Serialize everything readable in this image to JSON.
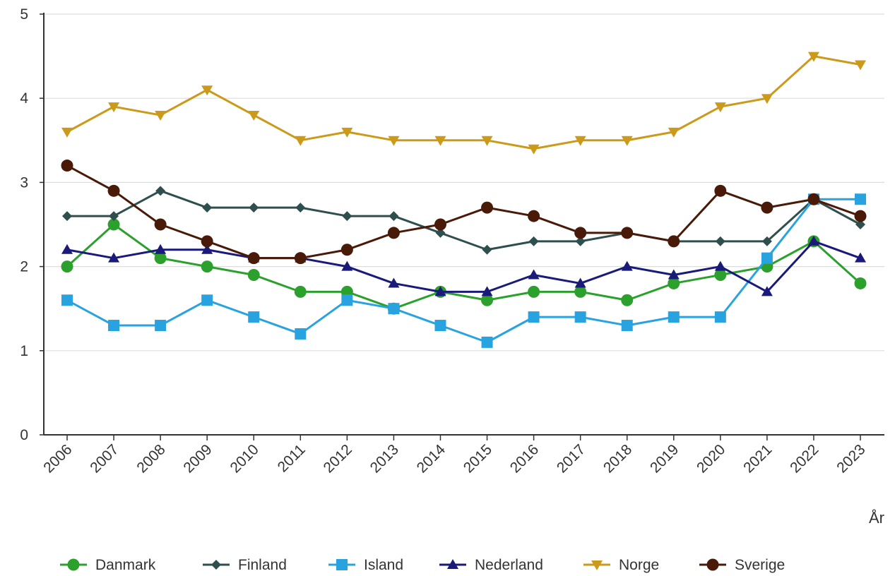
{
  "chart_data": {
    "type": "line",
    "xlabel": "År",
    "ylabel": "",
    "ylim": [
      0,
      5
    ],
    "yticks": [
      0,
      1,
      2,
      3,
      4,
      5
    ],
    "grid": true,
    "legend_position": "bottom",
    "x": [
      "2006",
      "2007",
      "2008",
      "2009",
      "2010",
      "2011",
      "2012",
      "2013",
      "2014",
      "2015",
      "2016",
      "2017",
      "2018",
      "2019",
      "2020",
      "2021",
      "2022",
      "2023"
    ],
    "series": [
      {
        "name": "Danmark",
        "color": "#2ca02c",
        "marker": "circle",
        "values": [
          2.0,
          2.5,
          2.1,
          2.0,
          1.9,
          1.7,
          1.7,
          1.5,
          1.7,
          1.6,
          1.7,
          1.7,
          1.6,
          1.8,
          1.9,
          2.0,
          2.3,
          1.8
        ]
      },
      {
        "name": "Finland",
        "color": "#2f4f4f",
        "marker": "diamond",
        "values": [
          2.6,
          2.6,
          2.9,
          2.7,
          2.7,
          2.7,
          2.6,
          2.6,
          2.4,
          2.2,
          2.3,
          2.3,
          2.4,
          2.3,
          2.3,
          2.3,
          2.8,
          2.5
        ]
      },
      {
        "name": "Island",
        "color": "#29a3e0",
        "marker": "square",
        "values": [
          1.6,
          1.3,
          1.3,
          1.6,
          1.4,
          1.2,
          1.6,
          1.5,
          1.3,
          1.1,
          1.4,
          1.4,
          1.3,
          1.4,
          1.4,
          2.1,
          2.8,
          2.8
        ]
      },
      {
        "name": "Nederland",
        "color": "#1a1a7a",
        "marker": "triangle-up",
        "values": [
          2.2,
          2.1,
          2.2,
          2.2,
          2.1,
          2.1,
          2.0,
          1.8,
          1.7,
          1.7,
          1.9,
          1.8,
          2.0,
          1.9,
          2.0,
          1.7,
          2.3,
          2.1
        ]
      },
      {
        "name": "Norge",
        "color": "#cc9a1a",
        "marker": "triangle-down",
        "values": [
          3.6,
          3.9,
          3.8,
          4.1,
          3.8,
          3.5,
          3.6,
          3.5,
          3.5,
          3.5,
          3.4,
          3.5,
          3.5,
          3.6,
          3.9,
          4.0,
          4.5,
          4.4
        ]
      },
      {
        "name": "Sverige",
        "color": "#4a1a08",
        "marker": "circle",
        "values": [
          3.2,
          2.9,
          2.5,
          2.3,
          2.1,
          2.1,
          2.2,
          2.4,
          2.5,
          2.7,
          2.6,
          2.4,
          2.4,
          2.3,
          2.9,
          2.7,
          2.8,
          2.6
        ]
      }
    ]
  }
}
